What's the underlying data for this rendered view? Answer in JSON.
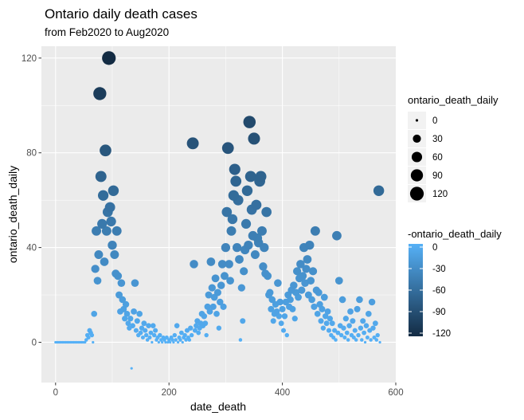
{
  "chart_data": {
    "type": "scatter",
    "title": "Ontario daily death cases",
    "subtitle": "from Feb2020 to Aug2020",
    "xlabel": "date_death",
    "ylabel": "ontario_death_daily",
    "xlim": [
      -25,
      600
    ],
    "ylim": [
      -17,
      125
    ],
    "x_ticks": [
      0,
      200,
      400,
      600
    ],
    "y_ticks": [
      0,
      40,
      80,
      120
    ],
    "grid": true,
    "legend_position": "right",
    "size_legend": {
      "title": "ontario_death_daily",
      "entries": [
        "0",
        "30",
        "60",
        "90",
        "120"
      ],
      "values": [
        0,
        30,
        60,
        90,
        120
      ]
    },
    "color_legend": {
      "title": "-ontario_death_daily",
      "entries": [
        "0",
        "-30",
        "-60",
        "-90",
        "-120"
      ],
      "values": [
        0,
        -30,
        -60,
        -90,
        -120
      ],
      "color_low": "#132b43",
      "color_high": "#56b1f7"
    },
    "points": [
      [
        0,
        0
      ],
      [
        2,
        0
      ],
      [
        4,
        0
      ],
      [
        6,
        0
      ],
      [
        8,
        0
      ],
      [
        10,
        0
      ],
      [
        12,
        0
      ],
      [
        14,
        0
      ],
      [
        16,
        0
      ],
      [
        18,
        0
      ],
      [
        20,
        0
      ],
      [
        22,
        0
      ],
      [
        24,
        0
      ],
      [
        26,
        0
      ],
      [
        28,
        0
      ],
      [
        30,
        0
      ],
      [
        32,
        0
      ],
      [
        34,
        0
      ],
      [
        36,
        0
      ],
      [
        38,
        0
      ],
      [
        40,
        0
      ],
      [
        42,
        0
      ],
      [
        44,
        0
      ],
      [
        46,
        0
      ],
      [
        48,
        0
      ],
      [
        50,
        0
      ],
      [
        52,
        0
      ],
      [
        54,
        1
      ],
      [
        56,
        3
      ],
      [
        58,
        2
      ],
      [
        60,
        5
      ],
      [
        62,
        4
      ],
      [
        64,
        3
      ],
      [
        66,
        0
      ],
      [
        68,
        12
      ],
      [
        70,
        31
      ],
      [
        72,
        47
      ],
      [
        74,
        26
      ],
      [
        76,
        37
      ],
      [
        78,
        105
      ],
      [
        80,
        70
      ],
      [
        82,
        50
      ],
      [
        84,
        62
      ],
      [
        86,
        34
      ],
      [
        88,
        81
      ],
      [
        90,
        47
      ],
      [
        92,
        55
      ],
      [
        94,
        120
      ],
      [
        96,
        57
      ],
      [
        98,
        51
      ],
      [
        100,
        41
      ],
      [
        102,
        64
      ],
      [
        104,
        37
      ],
      [
        106,
        29
      ],
      [
        108,
        47
      ],
      [
        110,
        28
      ],
      [
        112,
        20
      ],
      [
        114,
        13
      ],
      [
        116,
        25
      ],
      [
        118,
        18
      ],
      [
        120,
        14
      ],
      [
        122,
        10
      ],
      [
        124,
        16
      ],
      [
        126,
        12
      ],
      [
        128,
        8
      ],
      [
        130,
        6
      ],
      [
        132,
        10
      ],
      [
        134,
        -11
      ],
      [
        136,
        7
      ],
      [
        138,
        13
      ],
      [
        140,
        25
      ],
      [
        142,
        5
      ],
      [
        144,
        9
      ],
      [
        146,
        3
      ],
      [
        148,
        12
      ],
      [
        150,
        4
      ],
      [
        152,
        6
      ],
      [
        154,
        2
      ],
      [
        156,
        8
      ],
      [
        158,
        5
      ],
      [
        160,
        3
      ],
      [
        162,
        1
      ],
      [
        164,
        7
      ],
      [
        166,
        2
      ],
      [
        168,
        4
      ],
      [
        170,
        0
      ],
      [
        172,
        7
      ],
      [
        174,
        3
      ],
      [
        176,
        5
      ],
      [
        178,
        1
      ],
      [
        180,
        2
      ],
      [
        182,
        0
      ],
      [
        184,
        3
      ],
      [
        186,
        1
      ],
      [
        188,
        0
      ],
      [
        190,
        2
      ],
      [
        192,
        1
      ],
      [
        194,
        0
      ],
      [
        196,
        2
      ],
      [
        198,
        0
      ],
      [
        200,
        1
      ],
      [
        202,
        0
      ],
      [
        204,
        2
      ],
      [
        206,
        1
      ],
      [
        208,
        0
      ],
      [
        210,
        3
      ],
      [
        212,
        1
      ],
      [
        214,
        7
      ],
      [
        216,
        0
      ],
      [
        218,
        2
      ],
      [
        220,
        1
      ],
      [
        222,
        4
      ],
      [
        224,
        0
      ],
      [
        226,
        2
      ],
      [
        228,
        3
      ],
      [
        230,
        1
      ],
      [
        232,
        5
      ],
      [
        234,
        2
      ],
      [
        236,
        1
      ],
      [
        238,
        6
      ],
      [
        240,
        3
      ],
      [
        242,
        84
      ],
      [
        244,
        33
      ],
      [
        246,
        5
      ],
      [
        248,
        7
      ],
      [
        250,
        9
      ],
      [
        252,
        4
      ],
      [
        254,
        6
      ],
      [
        256,
        8
      ],
      [
        258,
        12
      ],
      [
        260,
        7
      ],
      [
        262,
        11
      ],
      [
        264,
        8
      ],
      [
        266,
        3
      ],
      [
        268,
        15
      ],
      [
        270,
        20
      ],
      [
        272,
        13
      ],
      [
        274,
        34
      ],
      [
        276,
        23
      ],
      [
        278,
        15
      ],
      [
        280,
        19
      ],
      [
        282,
        27
      ],
      [
        284,
        12
      ],
      [
        286,
        21
      ],
      [
        288,
        6
      ],
      [
        290,
        17
      ],
      [
        292,
        24
      ],
      [
        294,
        33
      ],
      [
        296,
        15
      ],
      [
        298,
        28
      ],
      [
        300,
        40
      ],
      [
        302,
        55
      ],
      [
        304,
        82
      ],
      [
        306,
        33
      ],
      [
        308,
        26
      ],
      [
        310,
        47
      ],
      [
        312,
        52
      ],
      [
        314,
        62
      ],
      [
        316,
        73
      ],
      [
        318,
        68
      ],
      [
        320,
        40
      ],
      [
        322,
        60
      ],
      [
        324,
        35
      ],
      [
        326,
        1
      ],
      [
        328,
        23
      ],
      [
        330,
        9
      ],
      [
        332,
        30
      ],
      [
        334,
        39
      ],
      [
        336,
        50
      ],
      [
        338,
        64
      ],
      [
        340,
        41
      ],
      [
        342,
        93
      ],
      [
        344,
        70
      ],
      [
        346,
        56
      ],
      [
        348,
        45
      ],
      [
        350,
        86
      ],
      [
        352,
        37
      ],
      [
        354,
        58
      ],
      [
        356,
        44
      ],
      [
        358,
        42
      ],
      [
        360,
        68
      ],
      [
        362,
        70
      ],
      [
        364,
        47
      ],
      [
        366,
        32
      ],
      [
        368,
        40
      ],
      [
        370,
        29
      ],
      [
        372,
        55
      ],
      [
        374,
        28
      ],
      [
        376,
        20
      ],
      [
        378,
        21
      ],
      [
        380,
        14
      ],
      [
        382,
        18
      ],
      [
        384,
        9
      ],
      [
        386,
        12
      ],
      [
        388,
        16
      ],
      [
        390,
        13
      ],
      [
        392,
        25
      ],
      [
        394,
        11
      ],
      [
        396,
        17
      ],
      [
        398,
        8
      ],
      [
        400,
        14
      ],
      [
        402,
        5
      ],
      [
        404,
        11
      ],
      [
        406,
        17
      ],
      [
        408,
        3
      ],
      [
        410,
        20
      ],
      [
        412,
        15
      ],
      [
        414,
        18
      ],
      [
        416,
        22
      ],
      [
        418,
        14
      ],
      [
        420,
        24
      ],
      [
        422,
        10
      ],
      [
        424,
        21
      ],
      [
        426,
        30
      ],
      [
        428,
        19
      ],
      [
        430,
        27
      ],
      [
        432,
        33
      ],
      [
        434,
        22
      ],
      [
        436,
        28
      ],
      [
        438,
        40
      ],
      [
        440,
        25
      ],
      [
        442,
        31
      ],
      [
        444,
        35
      ],
      [
        446,
        20
      ],
      [
        448,
        41
      ],
      [
        450,
        26
      ],
      [
        452,
        18
      ],
      [
        454,
        30
      ],
      [
        456,
        15
      ],
      [
        458,
        47
      ],
      [
        460,
        22
      ],
      [
        462,
        12
      ],
      [
        464,
        21
      ],
      [
        466,
        16
      ],
      [
        468,
        9
      ],
      [
        470,
        14
      ],
      [
        472,
        6
      ],
      [
        474,
        19
      ],
      [
        476,
        11
      ],
      [
        478,
        8
      ],
      [
        480,
        13
      ],
      [
        482,
        5
      ],
      [
        484,
        10
      ],
      [
        486,
        3
      ],
      [
        488,
        8
      ],
      [
        490,
        2
      ],
      [
        492,
        5
      ],
      [
        494,
        1
      ],
      [
        496,
        45
      ],
      [
        498,
        4
      ],
      [
        500,
        26
      ],
      [
        502,
        7
      ],
      [
        504,
        3
      ],
      [
        506,
        18
      ],
      [
        508,
        6
      ],
      [
        510,
        2
      ],
      [
        512,
        10
      ],
      [
        514,
        4
      ],
      [
        516,
        1
      ],
      [
        518,
        7
      ],
      [
        520,
        13
      ],
      [
        522,
        3
      ],
      [
        524,
        9
      ],
      [
        526,
        2
      ],
      [
        528,
        5
      ],
      [
        530,
        1
      ],
      [
        532,
        14
      ],
      [
        534,
        3
      ],
      [
        536,
        18
      ],
      [
        538,
        6
      ],
      [
        540,
        1
      ],
      [
        542,
        9
      ],
      [
        544,
        4
      ],
      [
        546,
        0
      ],
      [
        548,
        7
      ],
      [
        550,
        2
      ],
      [
        552,
        12
      ],
      [
        554,
        5
      ],
      [
        556,
        1
      ],
      [
        558,
        17
      ],
      [
        560,
        6
      ],
      [
        562,
        2
      ],
      [
        564,
        8
      ],
      [
        566,
        1
      ],
      [
        568,
        3
      ],
      [
        570,
        64
      ],
      [
        572,
        0
      ]
    ]
  }
}
